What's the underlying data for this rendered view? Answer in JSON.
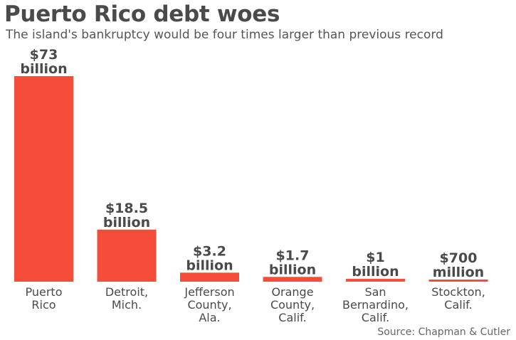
{
  "header": {
    "title": "Puerto Rico debt woes",
    "subtitle": "The island's bankruptcy would be four times larger than previous record"
  },
  "source": "Source: Chapman & Cutler",
  "colors": {
    "bar": "#f44e3b",
    "value_label": "#4a4a4a",
    "category_label": "#4a4a4a"
  },
  "chart_data": {
    "type": "bar",
    "title": "Puerto Rico debt woes",
    "subtitle": "The island's bankruptcy would be four times larger than previous record",
    "xlabel": "",
    "ylabel": "",
    "unit": "billion USD",
    "ylim": [
      0,
      73
    ],
    "grid": false,
    "legend": "none",
    "categories": [
      [
        "Puerto",
        "Rico"
      ],
      [
        "Detroit,",
        "Mich."
      ],
      [
        "Jefferson",
        "County,",
        "Ala."
      ],
      [
        "Orange",
        "County,",
        "Calif."
      ],
      [
        "San",
        "Bernardino,",
        "Calif."
      ],
      [
        "Stockton,",
        "Calif."
      ]
    ],
    "values": [
      73,
      18.5,
      3.2,
      1.7,
      1,
      0.7
    ],
    "value_labels": [
      [
        "$73",
        "billion"
      ],
      [
        "$18.5",
        "billion"
      ],
      [
        "$3.2",
        "billion"
      ],
      [
        "$1.7",
        "billion"
      ],
      [
        "$1",
        "billion"
      ],
      [
        "$700",
        "million"
      ]
    ]
  }
}
